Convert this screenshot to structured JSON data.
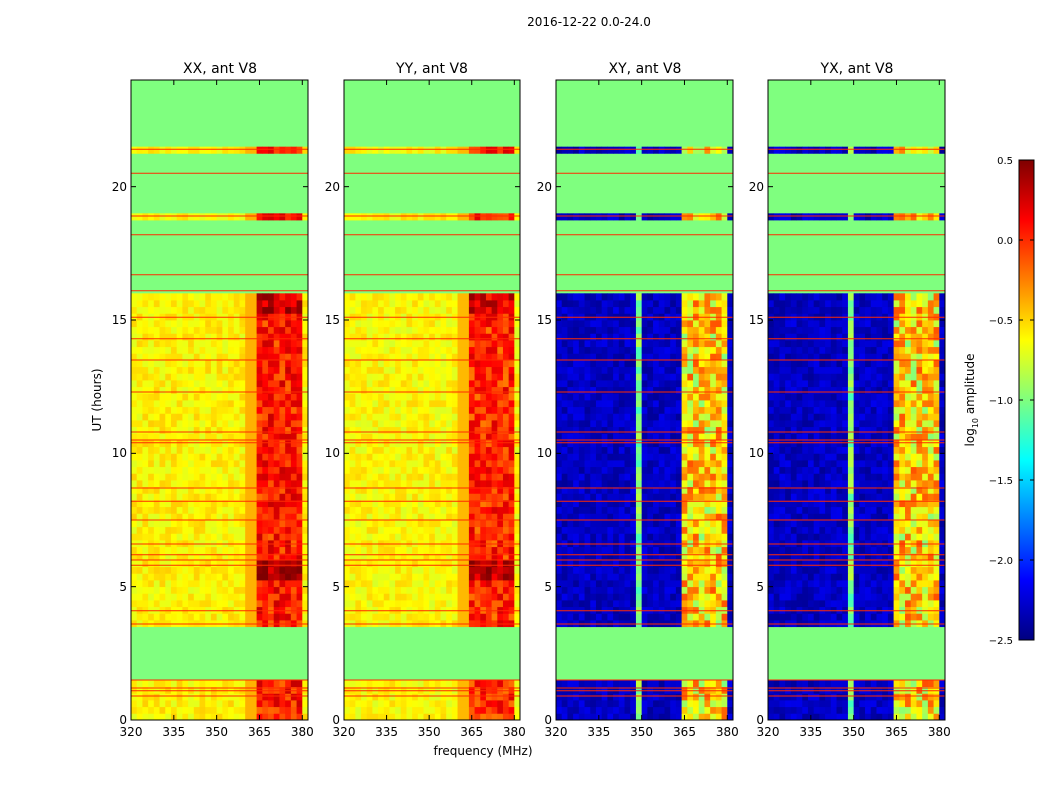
{
  "chart_data": {
    "type": "heatmap",
    "title": "2016-12-22 0.0-24.0",
    "xlabel": "frequency (MHz)",
    "ylabel": "UT (hours)",
    "xlim": [
      320,
      382
    ],
    "ylim": [
      0,
      24
    ],
    "x_ticks": [
      "320",
      "335",
      "350",
      "365",
      "380"
    ],
    "y_ticks": [
      "0",
      "5",
      "10",
      "15",
      "20"
    ],
    "panels": [
      {
        "title": "XX, ant V8",
        "pol": "XX",
        "base": -0.6,
        "hot": 0.05,
        "flag_color": "#7fff7f",
        "data_gaps": [
          [
            1.6,
            3.6
          ],
          [
            16.1,
            18.8
          ],
          [
            19.0,
            21.3
          ],
          [
            21.6,
            24.0
          ]
        ]
      },
      {
        "title": "YY, ant V8",
        "pol": "YY",
        "base": -0.62,
        "hot": 0.0,
        "flag_color": "#7fff7f",
        "data_gaps": [
          [
            1.6,
            3.6
          ],
          [
            16.1,
            18.8
          ],
          [
            19.0,
            21.3
          ],
          [
            21.6,
            24.0
          ]
        ]
      },
      {
        "title": "XY, ant V8",
        "pol": "XY",
        "base": -2.3,
        "hot": -0.55,
        "flag_color": "#7fff7f",
        "data_gaps": [
          [
            1.6,
            3.6
          ],
          [
            16.1,
            18.8
          ],
          [
            19.0,
            21.3
          ],
          [
            21.6,
            24.0
          ]
        ]
      },
      {
        "title": "YX, ant V8",
        "pol": "YX",
        "base": -2.3,
        "hot": -0.55,
        "flag_color": "#7fff7f",
        "data_gaps": [
          [
            1.6,
            3.6
          ],
          [
            16.1,
            18.8
          ],
          [
            19.0,
            21.3
          ],
          [
            21.6,
            24.0
          ]
        ]
      }
    ],
    "hot_channels_mhz": [
      [
        363.5,
        368.5
      ],
      [
        369,
        372.5
      ],
      [
        373,
        376.5
      ],
      [
        377,
        380
      ]
    ],
    "red_flag_lines_hours": [
      0.9,
      1.1,
      1.2,
      1.5,
      3.6,
      4.1,
      5.8,
      6.0,
      6.2,
      6.6,
      7.5,
      8.2,
      8.7,
      10.4,
      10.5,
      10.8,
      12.3,
      13.5,
      14.3,
      15.1,
      16.1,
      16.7,
      18.2,
      18.9,
      20.5,
      21.4
    ]
  },
  "colorbar": {
    "label_prefix": "log",
    "label_sub": "10",
    "label_suffix": " amplitude",
    "ticks": [
      "0.5",
      "0.0",
      "−0.5",
      "−1.0",
      "−1.5",
      "−2.0",
      "−2.5"
    ],
    "range": [
      -2.5,
      0.5
    ]
  }
}
